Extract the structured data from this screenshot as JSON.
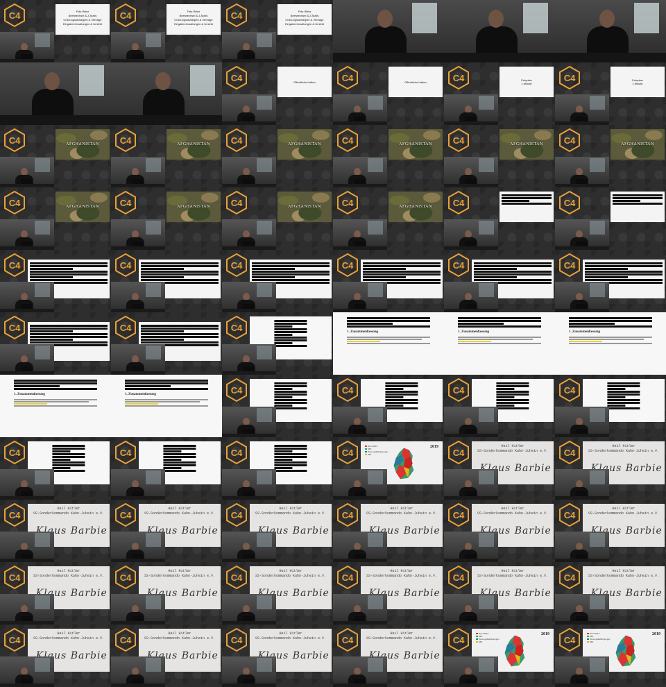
{
  "rows": [
    [
      "title",
      "title",
      "title",
      "cam",
      "cam",
      "cam"
    ],
    [
      "cam",
      "cam",
      "plain",
      "plain",
      "plain",
      "plain"
    ],
    [
      "camo",
      "camo",
      "camo",
      "camo",
      "camo",
      "camo"
    ],
    [
      "camo",
      "camo",
      "camo",
      "camo",
      "redact",
      "redact"
    ],
    [
      "redact",
      "redact",
      "redact",
      "redact",
      "redact",
      "redact"
    ],
    [
      "redact",
      "redact",
      "doc",
      "docbig",
      "doczoom",
      "doczoom"
    ],
    [
      "doczoombig",
      "doczoombig",
      "doc",
      "doc",
      "doc",
      "doc"
    ],
    [
      "doc",
      "doc",
      "doc",
      "map",
      "sig",
      "sig"
    ],
    [
      "sig",
      "sig",
      "sig",
      "sig",
      "sig",
      "sig"
    ],
    [
      "sig",
      "sig",
      "sig",
      "sig",
      "sig",
      "sig"
    ],
    [
      "sig",
      "sig",
      "sig",
      "sig",
      "map",
      "map"
    ]
  ],
  "logo_text": "C4",
  "accent": "#e8a13a",
  "title_slide": {
    "line1": "Fritz Ritter",
    "line2": "Briefwechsel & Z-Mails",
    "line3": "Ordnungsstrategien & Verträge",
    "line4": "Eingabeverwaltungen & Umfeld"
  },
  "plain_slides": [
    {
      "text": "Öffentliche Hallen"
    },
    {
      "text": "Öffentliche Hallen"
    },
    {
      "line1": "Fahrplan",
      "line2": "1 Minute"
    },
    {
      "line1": "Fahrplan",
      "line2": "1 Minute"
    }
  ],
  "camo_title": "AFGHANISTAN",
  "doc_heading": "1.   Zusammenfassung",
  "map": {
    "year": "2019",
    "legend": [
      {
        "label": "Bund 2019",
        "color": "#d33"
      },
      {
        "label": "SPD",
        "color": "#2a6"
      },
      {
        "label": "Planungsbeteiligungen",
        "color": "#1a8a5a"
      },
      {
        "label": "SPD",
        "color": "#e7b21a"
      }
    ]
  },
  "signature": {
    "line1": "Heil Hitler",
    "line2": "SS-Sonderkommando Kahn-Juhein e.V.",
    "scribble": "Klaus Barbie"
  }
}
